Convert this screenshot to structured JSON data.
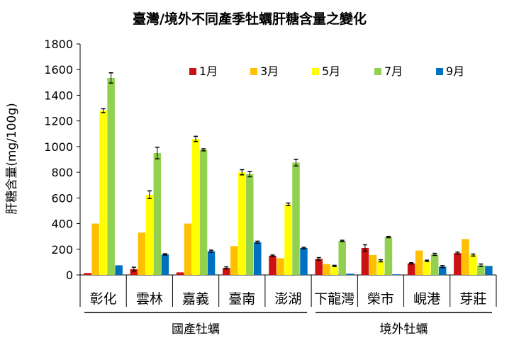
{
  "chart_data": {
    "type": "bar",
    "title": "臺灣/境外不同產季牡蠣肝糖含量之變化",
    "xlabel": "",
    "ylabel": "肝糖含量(mg/100g)",
    "ylim": [
      0,
      1800
    ],
    "yticks": [
      "0",
      "200",
      "400",
      "600",
      "800",
      "1000",
      "1200",
      "1400",
      "1600",
      "1800"
    ],
    "categories": [
      "彰化",
      "雲林",
      "嘉義",
      "臺南",
      "澎湖",
      "下龍灣",
      "榮市",
      "峴港",
      "芽莊"
    ],
    "groups": [
      {
        "label": "國產牡蠣",
        "from": 0,
        "to": 4
      },
      {
        "label": "境外牡蠣",
        "from": 5,
        "to": 8
      }
    ],
    "legend_position": "top-right",
    "grid": false,
    "series": [
      {
        "name": "1月",
        "color": "#cc1111",
        "values": [
          15,
          45,
          20,
          55,
          150,
          125,
          210,
          90,
          170
        ],
        "errors": [
          0,
          15,
          0,
          8,
          5,
          10,
          25,
          5,
          8
        ]
      },
      {
        "name": "3月",
        "color": "#ffc000",
        "values": [
          400,
          330,
          400,
          225,
          130,
          85,
          155,
          190,
          280
        ]
      },
      {
        "name": "5月",
        "color": "#ffff00",
        "values": [
          1280,
          625,
          1060,
          800,
          550,
          70,
          110,
          110,
          155
        ],
        "errors": [
          15,
          30,
          20,
          20,
          10,
          5,
          8,
          5,
          8
        ]
      },
      {
        "name": "7月",
        "color": "#92d050",
        "values": [
          1535,
          950,
          975,
          785,
          875,
          265,
          295,
          160,
          75
        ],
        "errors": [
          40,
          45,
          8,
          20,
          25,
          5,
          5,
          8,
          10
        ]
      },
      {
        "name": "9月",
        "color": "#0070c0",
        "values": [
          75,
          160,
          185,
          255,
          210,
          10,
          5,
          65,
          70
        ],
        "errors": [
          0,
          5,
          8,
          8,
          5,
          0,
          0,
          8,
          0
        ]
      }
    ]
  }
}
